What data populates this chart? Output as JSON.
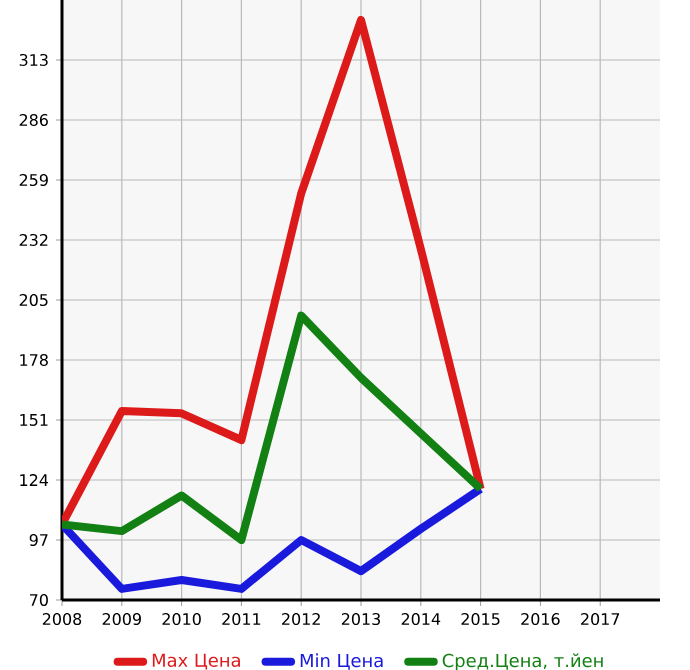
{
  "chart_data": {
    "type": "line",
    "x": [
      2008,
      2009,
      2010,
      2011,
      2012,
      2013,
      2014,
      2015
    ],
    "series": [
      {
        "name": "Max Цена",
        "color": "#dd1a1a",
        "values": [
          104,
          155,
          154,
          142,
          253,
          331,
          228,
          120
        ]
      },
      {
        "name": "Min Цена",
        "color": "#1a1add",
        "values": [
          104,
          75,
          79,
          75,
          97,
          83,
          102,
          120
        ]
      },
      {
        "name": "Сред.Цена, т.йен",
        "color": "#138013",
        "values": [
          104,
          101,
          117,
          97,
          198,
          170,
          145,
          120
        ]
      }
    ],
    "xlim": [
      2008,
      2018
    ],
    "xticks": [
      2008,
      2009,
      2010,
      2011,
      2012,
      2013,
      2014,
      2015,
      2016,
      2017
    ],
    "ylim": [
      70,
      340
    ],
    "yticks": [
      70,
      97,
      124,
      151,
      178,
      205,
      232,
      259,
      286,
      313
    ],
    "grid": true,
    "legend": "bottom",
    "marker": "none",
    "line_style": "solid"
  }
}
